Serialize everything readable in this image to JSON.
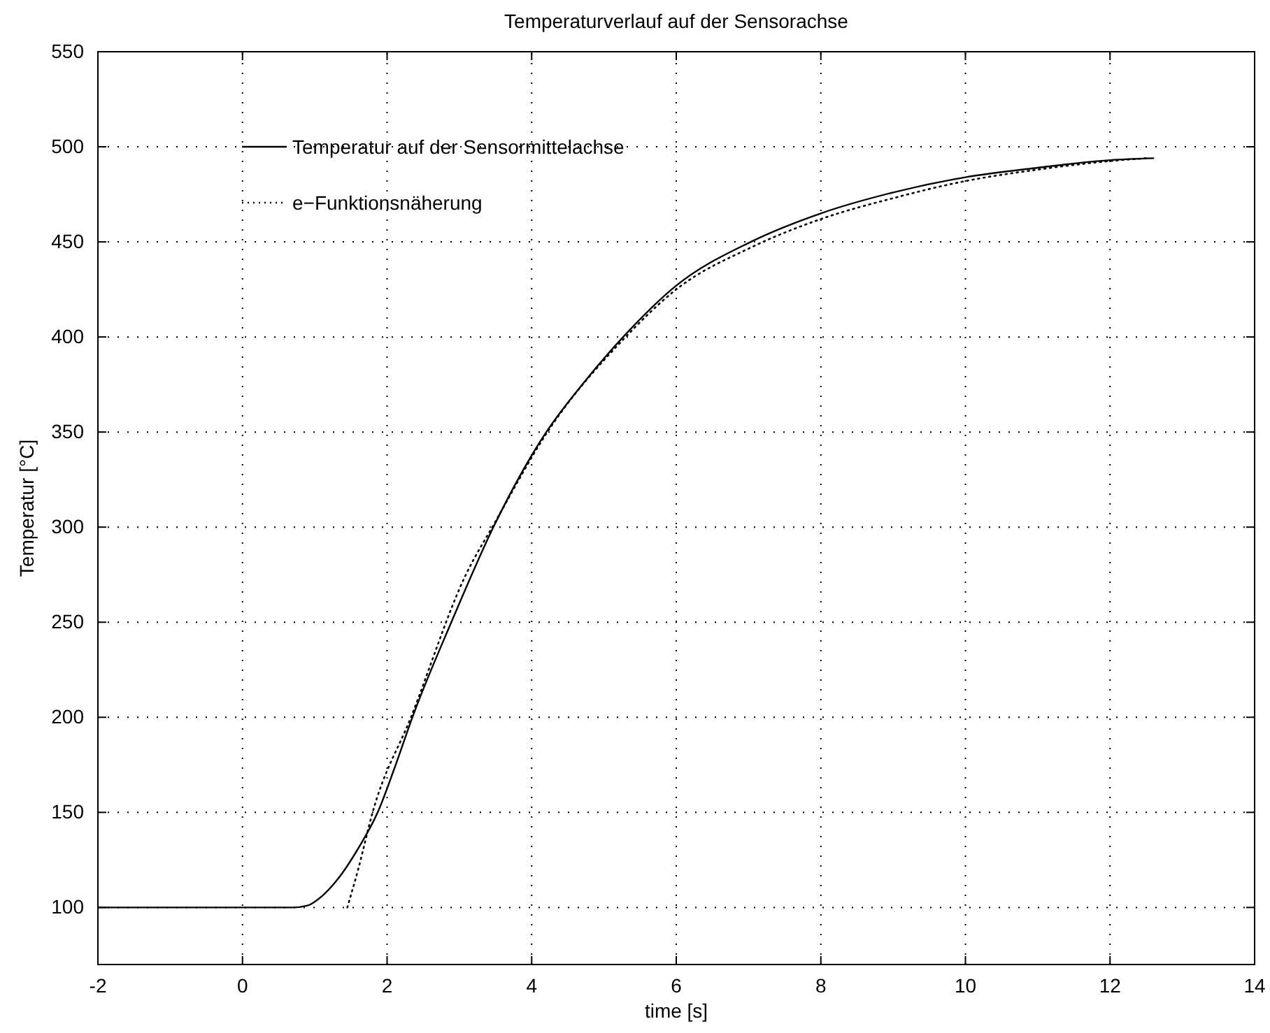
{
  "chart_data": {
    "type": "line",
    "title": "Temperaturverlauf auf der Sensorachse",
    "xlabel": "time [s]",
    "ylabel": "Temperatur [°C]",
    "xlim": [
      -2,
      14
    ],
    "xticks": [
      -2,
      0,
      2,
      4,
      6,
      8,
      10,
      12,
      14
    ],
    "ylim": [
      70,
      550
    ],
    "yticks": [
      100,
      150,
      200,
      250,
      300,
      350,
      400,
      450,
      500,
      550
    ],
    "grid": true,
    "legend": "top left",
    "series": [
      {
        "name": "Temperatur auf der Sensormittelachse",
        "color": "#000000",
        "line_style": "solid",
        "x": [
          -2,
          0.7,
          0.9,
          1.1,
          1.32,
          1.6,
          1.87,
          2.1,
          2.35,
          2.9,
          3.47,
          4.22,
          4.7,
          5.29,
          6,
          7.03,
          8,
          9,
          10,
          11,
          12,
          12.6
        ],
        "values": [
          100,
          100,
          101,
          106,
          115,
          131,
          150,
          173,
          200,
          251,
          300,
          351,
          375,
          401,
          427,
          450,
          465,
          476,
          484,
          489,
          493,
          494
        ]
      },
      {
        "name": "e−Funktionsnäherung",
        "color": "#000000",
        "line_style": "dotted",
        "x": [
          1.45,
          1.6,
          1.8,
          2.33,
          3.09,
          3.5,
          4.2,
          5.3,
          6,
          7.03,
          8,
          9,
          10,
          11,
          12,
          12.5
        ],
        "values": [
          100,
          120,
          150,
          200,
          275,
          303,
          349,
          400,
          425,
          447,
          462,
          473,
          482,
          488,
          492.5,
          494
        ]
      }
    ]
  }
}
